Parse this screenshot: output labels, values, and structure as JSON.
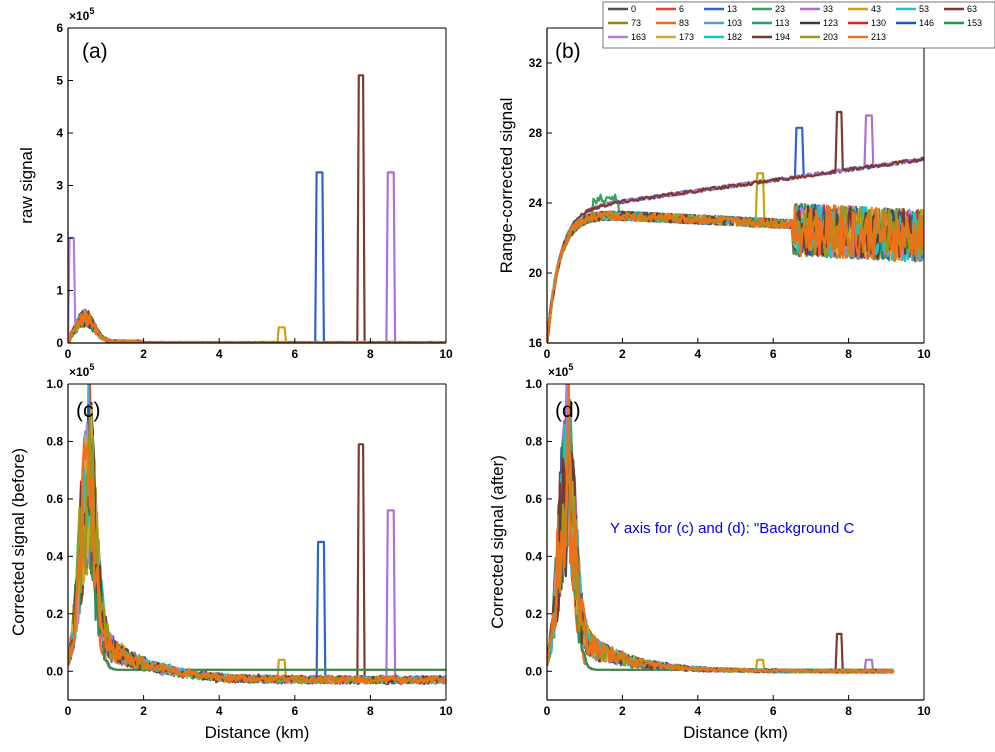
{
  "legend": {
    "items": [
      "0",
      "6",
      "13",
      "23",
      "33",
      "43",
      "53",
      "63",
      "73",
      "83",
      "103",
      "113",
      "123",
      "130",
      "146",
      "153",
      "163",
      "173",
      "182",
      "194",
      "203",
      "213"
    ],
    "colors": [
      "#505050",
      "#e8413c",
      "#2b65c8",
      "#3aa25f",
      "#b06fd4",
      "#c9a016",
      "#1fc0c8",
      "#7b3b2e",
      "#8a8a10",
      "#f2691c",
      "#5b9bd5",
      "#2e9e6a",
      "#3b3b3b",
      "#e02020",
      "#1f55b5",
      "#2a8f5a",
      "#b57ee0",
      "#d8a53a",
      "#17c7c7",
      "#6e3a32",
      "#9a9a1a",
      "#f07018"
    ]
  },
  "annotation": "Y axis for (c) and (d): \"Background C",
  "chart_data": [
    {
      "type": "line",
      "panel": "(a)",
      "xlabel": "",
      "ylabel": "raw signal",
      "multiplier": "×10",
      "multiplier_exp": "5",
      "xlim": [
        0,
        10
      ],
      "ylim": [
        0,
        6
      ],
      "xticks": [
        "0",
        "2",
        "4",
        "6",
        "8",
        "10"
      ],
      "yticks": [
        "0",
        "1",
        "2",
        "3",
        "4",
        "5",
        "6"
      ],
      "features": {
        "noise_peak": 0.6,
        "spikes": [
          {
            "x": 0.1,
            "y": 2.0,
            "series": 16
          },
          {
            "x": 5.65,
            "y": 0.3,
            "series": 5
          },
          {
            "x": 6.65,
            "y": 3.25,
            "series": 2
          },
          {
            "x": 7.75,
            "y": 5.1,
            "series": 7
          },
          {
            "x": 8.55,
            "y": 3.25,
            "series": 4
          }
        ]
      }
    },
    {
      "type": "line",
      "panel": "(b)",
      "xlabel": "",
      "ylabel": "Range-corrected signal",
      "xlim": [
        0,
        10
      ],
      "ylim": [
        16,
        34
      ],
      "xticks": [
        "0",
        "2",
        "4",
        "6",
        "8",
        "10"
      ],
      "yticks": [
        "16",
        "20",
        "24",
        "28",
        "32"
      ],
      "features": {
        "rising_series_end": 26.5,
        "falling_series_end": 22.2,
        "spikes": [
          {
            "x": 5.65,
            "y": 25.7,
            "series": 5
          },
          {
            "x": 6.7,
            "y": 28.3,
            "series": 2
          },
          {
            "x": 7.75,
            "y": 29.2,
            "series": 7
          },
          {
            "x": 8.55,
            "y": 29.0,
            "series": 4
          }
        ]
      }
    },
    {
      "type": "line",
      "panel": "(c)",
      "xlabel": "Distance (km)",
      "ylabel": "Corrected signal (before)",
      "multiplier": "×10",
      "multiplier_exp": "5",
      "xlim": [
        0,
        10
      ],
      "ylim": [
        -0.1,
        1.0
      ],
      "xticks": [
        "0",
        "2",
        "4",
        "6",
        "8",
        "10"
      ],
      "yticks": [
        "0.0",
        "0.2",
        "0.4",
        "0.6",
        "0.8",
        "1.0"
      ],
      "features": {
        "peak_x": 0.5,
        "peak_max": 0.87,
        "tail_offset": -0.04,
        "spikes": [
          {
            "x": 5.65,
            "y": 0.04,
            "series": 5
          },
          {
            "x": 6.7,
            "y": 0.45,
            "series": 2
          },
          {
            "x": 7.75,
            "y": 0.79,
            "series": 7
          },
          {
            "x": 8.55,
            "y": 0.56,
            "series": 4
          }
        ]
      }
    },
    {
      "type": "line",
      "panel": "(d)",
      "xlabel": "Distance (km)",
      "ylabel": "Corrected signal (after)",
      "multiplier": "×10",
      "multiplier_exp": "5",
      "xlim": [
        0,
        10
      ],
      "ylim": [
        -0.1,
        1.0
      ],
      "xticks": [
        "0",
        "2",
        "4",
        "6",
        "8",
        "10"
      ],
      "yticks": [
        "0.0",
        "0.2",
        "0.4",
        "0.6",
        "0.8",
        "1.0"
      ],
      "features": {
        "peak_x": 0.5,
        "peak_max": 0.9,
        "tail_offset": 0.0,
        "spikes": [
          {
            "x": 5.65,
            "y": 0.04,
            "series": 5
          },
          {
            "x": 7.75,
            "y": 0.13,
            "series": 7
          },
          {
            "x": 8.55,
            "y": 0.04,
            "series": 4
          }
        ]
      }
    }
  ]
}
